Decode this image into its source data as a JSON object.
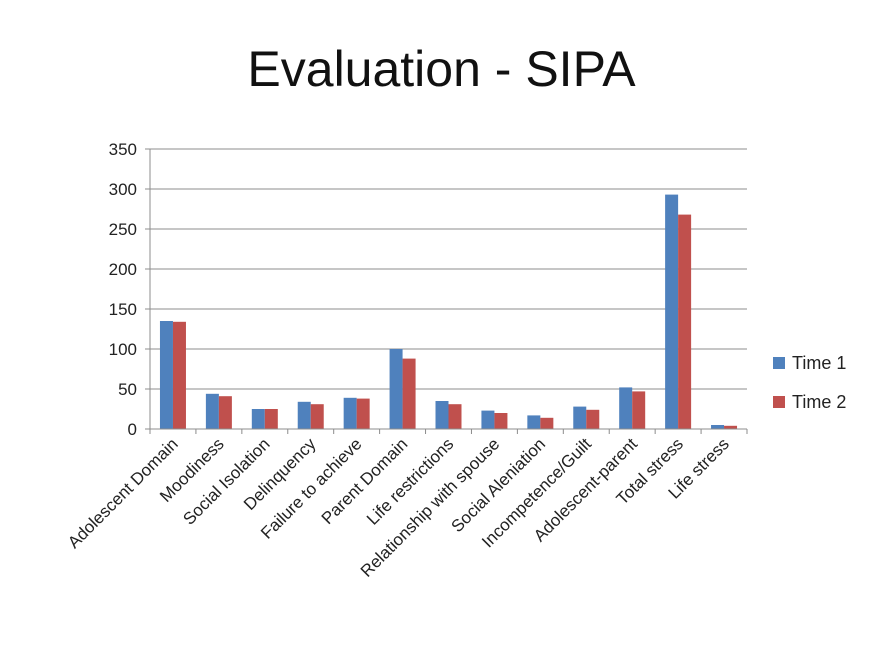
{
  "title": "Evaluation - SIPA",
  "colors": {
    "series1": "#4F81BD",
    "series2": "#C0504D"
  },
  "chart_data": {
    "type": "bar",
    "title": "",
    "xlabel": "",
    "ylabel": "",
    "ylim": [
      0,
      350
    ],
    "yticks": [
      0,
      50,
      100,
      150,
      200,
      250,
      300,
      350
    ],
    "grid": true,
    "legend_position": "right",
    "categories": [
      "Adolescent Domain",
      "Moodiness",
      "Social Isolation",
      "Delinquency",
      "Failure to achieve",
      "Parent Domain",
      "Life restrictions",
      "Relationship with spouse",
      "Social Aleniation",
      "Incompetence/Guilt",
      "Adolescent-parent",
      "Total  stress",
      "Life stress"
    ],
    "series": [
      {
        "name": "Time 1",
        "values": [
          135,
          44,
          25,
          34,
          39,
          100,
          35,
          23,
          17,
          28,
          52,
          293,
          5
        ]
      },
      {
        "name": "Time 2",
        "values": [
          134,
          41,
          25,
          31,
          38,
          88,
          31,
          20,
          14,
          24,
          47,
          268,
          4
        ]
      }
    ]
  }
}
